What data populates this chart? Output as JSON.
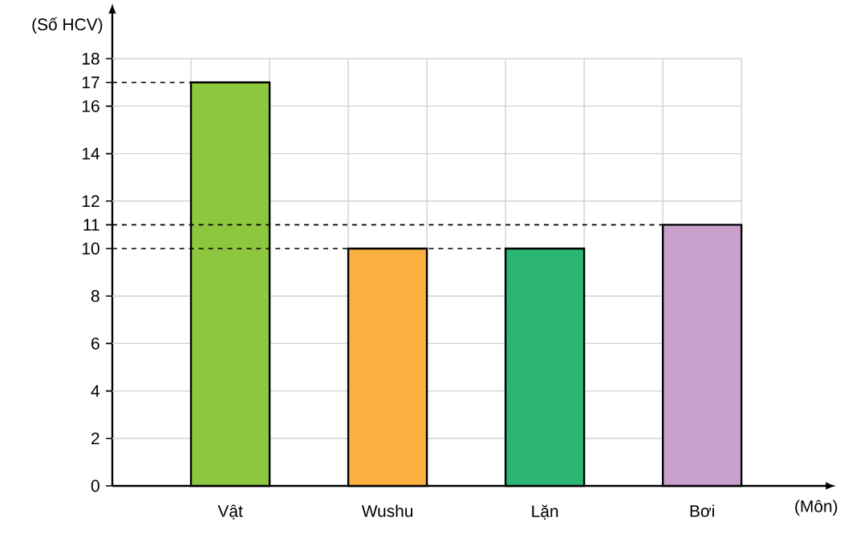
{
  "chart_data": {
    "type": "bar",
    "xlabel": "(Môn)",
    "ylabel": "(Số HCV)",
    "categories": [
      "Vật",
      "Wushu",
      "Lặn",
      "Bơi"
    ],
    "values": [
      17,
      10,
      10,
      11
    ],
    "colors": [
      "#8dc63f",
      "#fbb040",
      "#2bb673",
      "#c9a0cc"
    ],
    "ylim": [
      0,
      20
    ],
    "yticks": [
      0,
      2,
      4,
      6,
      8,
      10,
      11,
      12,
      14,
      16,
      17,
      18
    ],
    "grid": true,
    "ref_lines": [
      {
        "axis": "y",
        "value": 17,
        "line_style": "dashed"
      },
      {
        "axis": "y",
        "value": 11,
        "line_style": "dashed"
      },
      {
        "axis": "y",
        "value": 10,
        "line_style": "dashed"
      }
    ]
  }
}
